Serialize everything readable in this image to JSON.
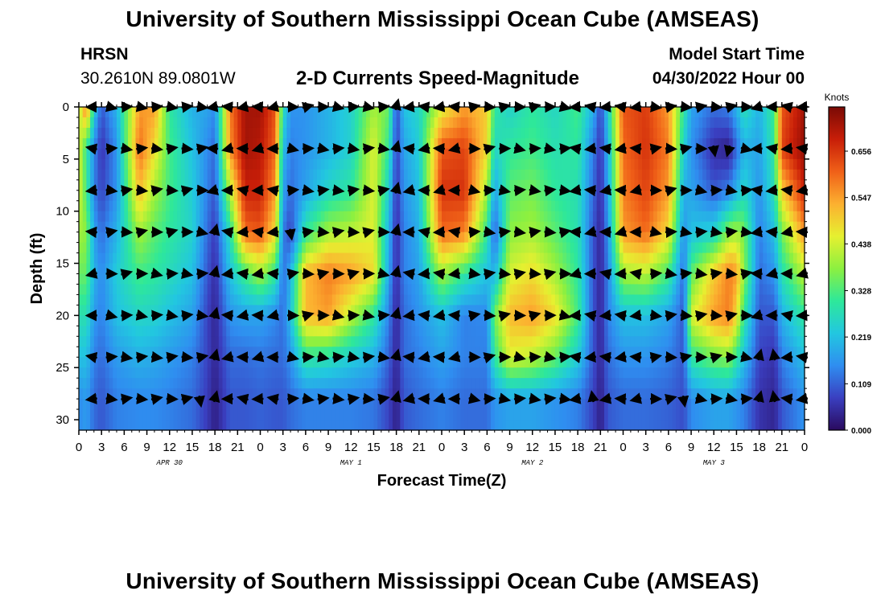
{
  "header": {
    "title": "University of Southern Mississippi Ocean Cube (AMSEAS)",
    "title_repeat": "University of Southern Mississippi Ocean Cube (AMSEAS)",
    "station": "HRSN",
    "coordinates": "30.2610N  89.0801W",
    "subtitle": "2-D Currents Speed-Magnitude",
    "model_start_label": "Model Start Time",
    "model_start_value": "04/30/2022 Hour 00"
  },
  "chart_data": {
    "type": "heatmap",
    "title": "2-D Currents Speed-Magnitude",
    "xlabel": "Forecast Time(Z)",
    "ylabel": "Depth (ft)",
    "xlim": [
      0,
      96
    ],
    "ylim": [
      0,
      31
    ],
    "x_ticks": [
      0,
      3,
      6,
      9,
      12,
      15,
      18,
      21,
      24,
      27,
      30,
      33,
      36,
      39,
      42,
      45,
      48,
      51,
      54,
      57,
      60,
      63,
      66,
      69,
      72,
      75,
      78,
      81,
      84,
      87,
      90,
      93,
      96
    ],
    "x_tick_labels": [
      "0",
      "3",
      "6",
      "9",
      "12",
      "15",
      "18",
      "21",
      "0",
      "3",
      "6",
      "9",
      "12",
      "15",
      "18",
      "21",
      "0",
      "3",
      "6",
      "9",
      "12",
      "15",
      "18",
      "21",
      "0",
      "3",
      "6",
      "9",
      "12",
      "15",
      "18",
      "21",
      "0"
    ],
    "y_ticks": [
      0,
      5,
      10,
      15,
      20,
      25,
      30
    ],
    "y_tick_labels": [
      "0",
      "5",
      "10",
      "15",
      "20",
      "25",
      "30"
    ],
    "day_labels": [
      {
        "hour": 12,
        "label": "APR 30"
      },
      {
        "hour": 36,
        "label": "MAY 1"
      },
      {
        "hour": 60,
        "label": "MAY 2"
      },
      {
        "hour": 84,
        "label": "MAY 3"
      }
    ],
    "colorbar": {
      "unit": "Knots",
      "min": 0.0,
      "max": 0.76,
      "ticks": [
        0.0,
        0.109,
        0.219,
        0.328,
        0.438,
        0.547,
        0.656
      ],
      "tick_labels": [
        "0.000",
        "0.109",
        "0.219",
        "0.328",
        "0.438",
        "0.547",
        "0.656"
      ],
      "colors": [
        "#2a0a5e",
        "#3a3fc0",
        "#2f8ef0",
        "#22c7e0",
        "#2ee89a",
        "#8cf040",
        "#e6f030",
        "#fcb030",
        "#f06018",
        "#c81e08",
        "#7a0a05"
      ]
    },
    "vector_depths": [
      0,
      4,
      8,
      12,
      16,
      20,
      24,
      28
    ],
    "speed_field": {
      "x_hours": [
        0,
        1,
        2,
        3,
        5,
        8,
        10,
        12,
        15,
        17,
        18,
        20,
        22,
        24,
        26,
        27,
        28,
        30,
        33,
        36,
        39,
        41,
        42,
        43,
        45,
        48,
        51,
        54,
        55,
        57,
        60,
        63,
        66,
        68,
        69,
        70,
        72,
        75,
        78,
        80,
        81,
        84,
        86,
        87,
        88,
        90,
        92,
        93,
        96
      ],
      "depths": [
        0,
        4,
        8,
        12,
        16,
        20,
        24,
        28,
        31
      ],
      "values_knots": [
        [
          0.4,
          0.45,
          0.45,
          0.4,
          0.35,
          0.28,
          0.22,
          0.15
        ],
        [
          0.6,
          0.3,
          0.32,
          0.38,
          0.35,
          0.28,
          0.22,
          0.17
        ],
        [
          0.25,
          0.15,
          0.14,
          0.18,
          0.2,
          0.17,
          0.14,
          0.12
        ],
        [
          0.1,
          0.06,
          0.08,
          0.12,
          0.15,
          0.14,
          0.12,
          0.1
        ],
        [
          0.2,
          0.16,
          0.16,
          0.2,
          0.24,
          0.22,
          0.17,
          0.14
        ],
        [
          0.55,
          0.6,
          0.52,
          0.4,
          0.32,
          0.26,
          0.2,
          0.15
        ],
        [
          0.55,
          0.48,
          0.4,
          0.34,
          0.3,
          0.25,
          0.19,
          0.15
        ],
        [
          0.3,
          0.32,
          0.32,
          0.3,
          0.27,
          0.22,
          0.17,
          0.14
        ],
        [
          0.2,
          0.22,
          0.24,
          0.25,
          0.22,
          0.18,
          0.14,
          0.12
        ],
        [
          0.18,
          0.15,
          0.14,
          0.12,
          0.1,
          0.08,
          0.08,
          0.07
        ],
        [
          0.15,
          0.12,
          0.1,
          0.07,
          0.05,
          0.04,
          0.04,
          0.03
        ],
        [
          0.58,
          0.56,
          0.42,
          0.28,
          0.22,
          0.16,
          0.12,
          0.1
        ],
        [
          0.72,
          0.72,
          0.68,
          0.6,
          0.32,
          0.18,
          0.12,
          0.1
        ],
        [
          0.72,
          0.7,
          0.68,
          0.62,
          0.4,
          0.18,
          0.13,
          0.11
        ],
        [
          0.62,
          0.6,
          0.55,
          0.48,
          0.3,
          0.15,
          0.12,
          0.1
        ],
        [
          0.28,
          0.22,
          0.18,
          0.14,
          0.12,
          0.12,
          0.12,
          0.1
        ],
        [
          0.16,
          0.14,
          0.12,
          0.08,
          0.2,
          0.22,
          0.16,
          0.12
        ],
        [
          0.16,
          0.16,
          0.18,
          0.3,
          0.52,
          0.52,
          0.3,
          0.14
        ],
        [
          0.2,
          0.2,
          0.26,
          0.4,
          0.58,
          0.55,
          0.28,
          0.14
        ],
        [
          0.25,
          0.25,
          0.3,
          0.42,
          0.55,
          0.42,
          0.24,
          0.14
        ],
        [
          0.4,
          0.45,
          0.45,
          0.45,
          0.48,
          0.3,
          0.2,
          0.13
        ],
        [
          0.35,
          0.3,
          0.24,
          0.2,
          0.18,
          0.14,
          0.11,
          0.08
        ],
        [
          0.08,
          0.07,
          0.06,
          0.05,
          0.05,
          0.04,
          0.04,
          0.03
        ],
        [
          0.22,
          0.18,
          0.16,
          0.14,
          0.14,
          0.12,
          0.12,
          0.1
        ],
        [
          0.26,
          0.24,
          0.22,
          0.2,
          0.18,
          0.16,
          0.14,
          0.12
        ],
        [
          0.45,
          0.62,
          0.66,
          0.6,
          0.4,
          0.22,
          0.18,
          0.14
        ],
        [
          0.55,
          0.64,
          0.66,
          0.58,
          0.3,
          0.14,
          0.14,
          0.12
        ],
        [
          0.5,
          0.48,
          0.4,
          0.3,
          0.22,
          0.15,
          0.14,
          0.12
        ],
        [
          0.3,
          0.26,
          0.18,
          0.1,
          0.2,
          0.36,
          0.3,
          0.16
        ],
        [
          0.25,
          0.3,
          0.34,
          0.38,
          0.44,
          0.52,
          0.45,
          0.18
        ],
        [
          0.3,
          0.32,
          0.36,
          0.4,
          0.48,
          0.55,
          0.42,
          0.18
        ],
        [
          0.26,
          0.28,
          0.3,
          0.34,
          0.4,
          0.48,
          0.35,
          0.16
        ],
        [
          0.32,
          0.3,
          0.28,
          0.28,
          0.3,
          0.32,
          0.24,
          0.14
        ],
        [
          0.2,
          0.14,
          0.12,
          0.1,
          0.1,
          0.1,
          0.1,
          0.08
        ],
        [
          0.08,
          0.06,
          0.05,
          0.04,
          0.04,
          0.04,
          0.04,
          0.03
        ],
        [
          0.24,
          0.2,
          0.18,
          0.16,
          0.14,
          0.14,
          0.12,
          0.1
        ],
        [
          0.62,
          0.6,
          0.58,
          0.55,
          0.4,
          0.22,
          0.16,
          0.12
        ],
        [
          0.65,
          0.66,
          0.64,
          0.6,
          0.42,
          0.22,
          0.16,
          0.12
        ],
        [
          0.55,
          0.58,
          0.55,
          0.48,
          0.32,
          0.18,
          0.14,
          0.11
        ],
        [
          0.3,
          0.25,
          0.2,
          0.16,
          0.12,
          0.1,
          0.1,
          0.09
        ],
        [
          0.18,
          0.16,
          0.18,
          0.22,
          0.34,
          0.44,
          0.3,
          0.15
        ],
        [
          0.12,
          0.05,
          0.1,
          0.25,
          0.5,
          0.55,
          0.36,
          0.18
        ],
        [
          0.14,
          0.03,
          0.14,
          0.38,
          0.58,
          0.58,
          0.38,
          0.18
        ],
        [
          0.2,
          0.12,
          0.2,
          0.4,
          0.55,
          0.48,
          0.3,
          0.16
        ],
        [
          0.28,
          0.2,
          0.26,
          0.36,
          0.38,
          0.3,
          0.22,
          0.14
        ],
        [
          0.2,
          0.18,
          0.16,
          0.14,
          0.12,
          0.1,
          0.08,
          0.06
        ],
        [
          0.32,
          0.3,
          0.28,
          0.22,
          0.16,
          0.1,
          0.06,
          0.04
        ],
        [
          0.62,
          0.64,
          0.5,
          0.36,
          0.28,
          0.2,
          0.14,
          0.1
        ],
        [
          0.72,
          0.74,
          0.68,
          0.56,
          0.42,
          0.3,
          0.22,
          0.16
        ]
      ]
    },
    "vector_direction_summary": "Arrows at depths 0-28 ft mostly point east (right) during strong-current periods and west (left) during reversal periods; near-vertical arrows occur at hour 18 slack-water columns."
  }
}
